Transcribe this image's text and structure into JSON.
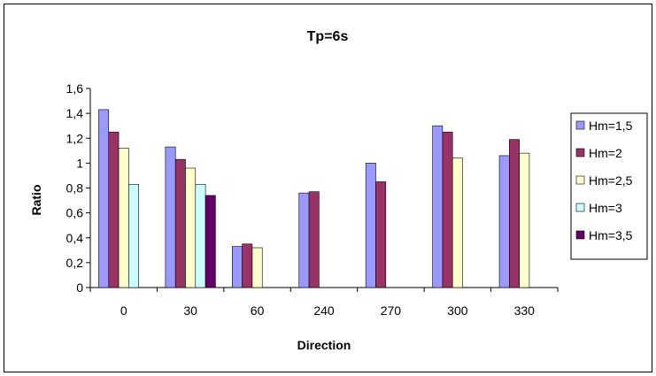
{
  "chart_data": {
    "type": "bar",
    "title": "Tp=6s",
    "xlabel": "Direction",
    "ylabel": "Ratio",
    "categories": [
      "0",
      "30",
      "60",
      "240",
      "270",
      "300",
      "330"
    ],
    "ylim": [
      0,
      1.6
    ],
    "yticks": [
      "0",
      "0,2",
      "0,4",
      "0,6",
      "0,8",
      "1",
      "1,2",
      "1,4",
      "1,6"
    ],
    "grid": false,
    "legend_position": "right",
    "series": [
      {
        "name": "Hm=1,5",
        "color": "#9999FF",
        "values": [
          1.43,
          1.13,
          0.33,
          0.76,
          1.0,
          1.3,
          1.06
        ]
      },
      {
        "name": "Hm=2",
        "color": "#993366",
        "values": [
          1.25,
          1.03,
          0.35,
          0.77,
          0.85,
          1.25,
          1.19
        ]
      },
      {
        "name": "Hm=2,5",
        "color": "#FFFFCC",
        "values": [
          1.12,
          0.96,
          0.32,
          null,
          null,
          1.04,
          1.08
        ]
      },
      {
        "name": "Hm=3",
        "color": "#CCFFFF",
        "values": [
          0.83,
          0.83,
          null,
          null,
          null,
          null,
          null
        ]
      },
      {
        "name": "Hm=3,5",
        "color": "#660066",
        "values": [
          null,
          0.74,
          null,
          null,
          null,
          null,
          null
        ]
      }
    ]
  }
}
